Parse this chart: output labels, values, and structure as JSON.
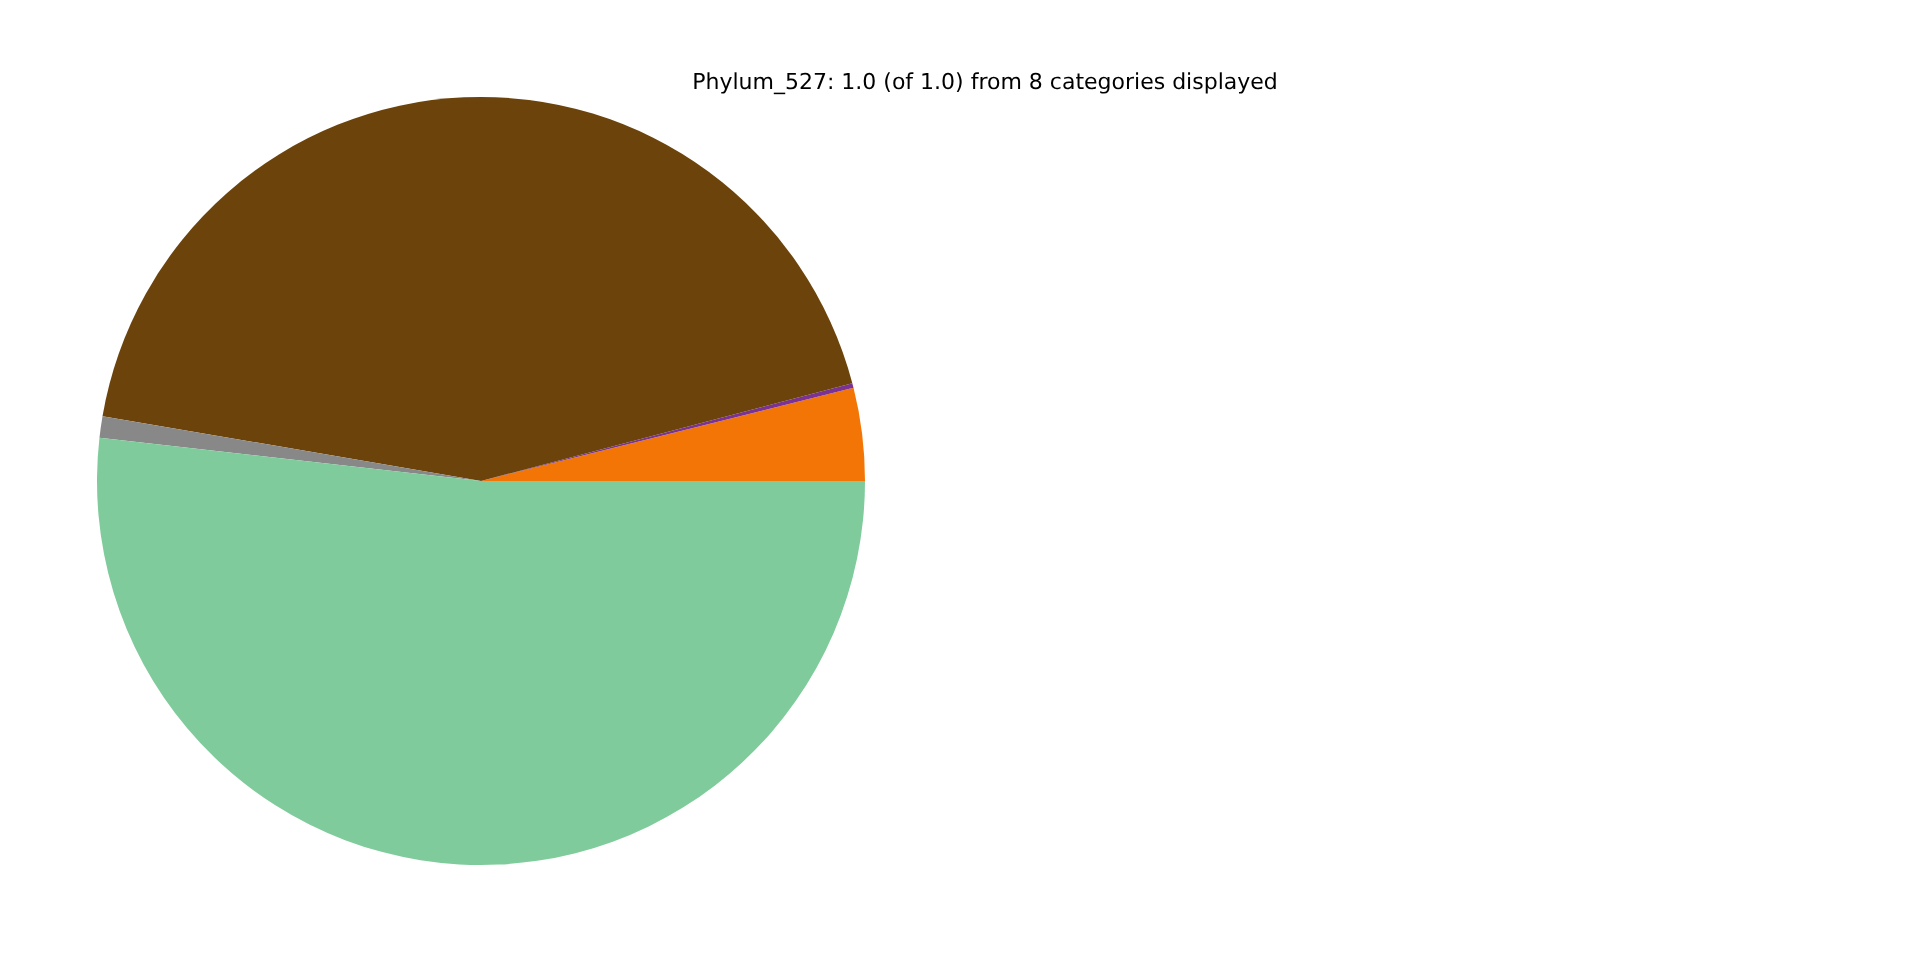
{
  "chart_data": {
    "type": "pie",
    "title": "Phylum_527: 1.0 (of 1.0) from 8 categories displayed",
    "categories": [
      null,
      null,
      null,
      null,
      null
    ],
    "values": [
      3.9,
      0.2,
      43.2,
      0.9,
      51.8
    ],
    "colors": [
      "#f37506",
      "#7b3294",
      "#6b430b",
      "#888888",
      "#80cb9c"
    ]
  }
}
